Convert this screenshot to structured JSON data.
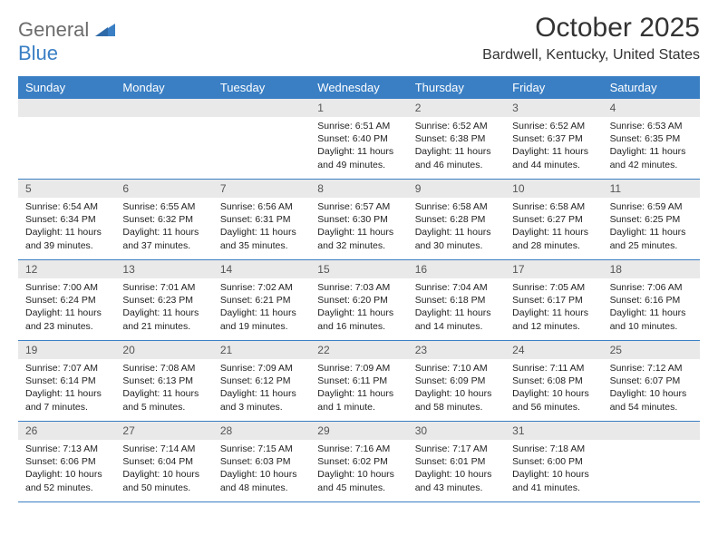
{
  "brand": {
    "word1": "General",
    "word2": "Blue",
    "logo_color": "#3a7fc4",
    "text1_color": "#6c6c6c"
  },
  "title": {
    "month_year": "October 2025",
    "location": "Bardwell, Kentucky, United States"
  },
  "colors": {
    "header_bg": "#3a7fc4",
    "header_text": "#ffffff",
    "daynum_bg": "#e9e9e9",
    "border": "#3a7fc4",
    "body_text": "#222222"
  },
  "day_names": [
    "Sunday",
    "Monday",
    "Tuesday",
    "Wednesday",
    "Thursday",
    "Friday",
    "Saturday"
  ],
  "weeks": [
    [
      {
        "day": "",
        "sunrise": "",
        "sunset": "",
        "daylight": ""
      },
      {
        "day": "",
        "sunrise": "",
        "sunset": "",
        "daylight": ""
      },
      {
        "day": "",
        "sunrise": "",
        "sunset": "",
        "daylight": ""
      },
      {
        "day": "1",
        "sunrise": "Sunrise: 6:51 AM",
        "sunset": "Sunset: 6:40 PM",
        "daylight": "Daylight: 11 hours and 49 minutes."
      },
      {
        "day": "2",
        "sunrise": "Sunrise: 6:52 AM",
        "sunset": "Sunset: 6:38 PM",
        "daylight": "Daylight: 11 hours and 46 minutes."
      },
      {
        "day": "3",
        "sunrise": "Sunrise: 6:52 AM",
        "sunset": "Sunset: 6:37 PM",
        "daylight": "Daylight: 11 hours and 44 minutes."
      },
      {
        "day": "4",
        "sunrise": "Sunrise: 6:53 AM",
        "sunset": "Sunset: 6:35 PM",
        "daylight": "Daylight: 11 hours and 42 minutes."
      }
    ],
    [
      {
        "day": "5",
        "sunrise": "Sunrise: 6:54 AM",
        "sunset": "Sunset: 6:34 PM",
        "daylight": "Daylight: 11 hours and 39 minutes."
      },
      {
        "day": "6",
        "sunrise": "Sunrise: 6:55 AM",
        "sunset": "Sunset: 6:32 PM",
        "daylight": "Daylight: 11 hours and 37 minutes."
      },
      {
        "day": "7",
        "sunrise": "Sunrise: 6:56 AM",
        "sunset": "Sunset: 6:31 PM",
        "daylight": "Daylight: 11 hours and 35 minutes."
      },
      {
        "day": "8",
        "sunrise": "Sunrise: 6:57 AM",
        "sunset": "Sunset: 6:30 PM",
        "daylight": "Daylight: 11 hours and 32 minutes."
      },
      {
        "day": "9",
        "sunrise": "Sunrise: 6:58 AM",
        "sunset": "Sunset: 6:28 PM",
        "daylight": "Daylight: 11 hours and 30 minutes."
      },
      {
        "day": "10",
        "sunrise": "Sunrise: 6:58 AM",
        "sunset": "Sunset: 6:27 PM",
        "daylight": "Daylight: 11 hours and 28 minutes."
      },
      {
        "day": "11",
        "sunrise": "Sunrise: 6:59 AM",
        "sunset": "Sunset: 6:25 PM",
        "daylight": "Daylight: 11 hours and 25 minutes."
      }
    ],
    [
      {
        "day": "12",
        "sunrise": "Sunrise: 7:00 AM",
        "sunset": "Sunset: 6:24 PM",
        "daylight": "Daylight: 11 hours and 23 minutes."
      },
      {
        "day": "13",
        "sunrise": "Sunrise: 7:01 AM",
        "sunset": "Sunset: 6:23 PM",
        "daylight": "Daylight: 11 hours and 21 minutes."
      },
      {
        "day": "14",
        "sunrise": "Sunrise: 7:02 AM",
        "sunset": "Sunset: 6:21 PM",
        "daylight": "Daylight: 11 hours and 19 minutes."
      },
      {
        "day": "15",
        "sunrise": "Sunrise: 7:03 AM",
        "sunset": "Sunset: 6:20 PM",
        "daylight": "Daylight: 11 hours and 16 minutes."
      },
      {
        "day": "16",
        "sunrise": "Sunrise: 7:04 AM",
        "sunset": "Sunset: 6:18 PM",
        "daylight": "Daylight: 11 hours and 14 minutes."
      },
      {
        "day": "17",
        "sunrise": "Sunrise: 7:05 AM",
        "sunset": "Sunset: 6:17 PM",
        "daylight": "Daylight: 11 hours and 12 minutes."
      },
      {
        "day": "18",
        "sunrise": "Sunrise: 7:06 AM",
        "sunset": "Sunset: 6:16 PM",
        "daylight": "Daylight: 11 hours and 10 minutes."
      }
    ],
    [
      {
        "day": "19",
        "sunrise": "Sunrise: 7:07 AM",
        "sunset": "Sunset: 6:14 PM",
        "daylight": "Daylight: 11 hours and 7 minutes."
      },
      {
        "day": "20",
        "sunrise": "Sunrise: 7:08 AM",
        "sunset": "Sunset: 6:13 PM",
        "daylight": "Daylight: 11 hours and 5 minutes."
      },
      {
        "day": "21",
        "sunrise": "Sunrise: 7:09 AM",
        "sunset": "Sunset: 6:12 PM",
        "daylight": "Daylight: 11 hours and 3 minutes."
      },
      {
        "day": "22",
        "sunrise": "Sunrise: 7:09 AM",
        "sunset": "Sunset: 6:11 PM",
        "daylight": "Daylight: 11 hours and 1 minute."
      },
      {
        "day": "23",
        "sunrise": "Sunrise: 7:10 AM",
        "sunset": "Sunset: 6:09 PM",
        "daylight": "Daylight: 10 hours and 58 minutes."
      },
      {
        "day": "24",
        "sunrise": "Sunrise: 7:11 AM",
        "sunset": "Sunset: 6:08 PM",
        "daylight": "Daylight: 10 hours and 56 minutes."
      },
      {
        "day": "25",
        "sunrise": "Sunrise: 7:12 AM",
        "sunset": "Sunset: 6:07 PM",
        "daylight": "Daylight: 10 hours and 54 minutes."
      }
    ],
    [
      {
        "day": "26",
        "sunrise": "Sunrise: 7:13 AM",
        "sunset": "Sunset: 6:06 PM",
        "daylight": "Daylight: 10 hours and 52 minutes."
      },
      {
        "day": "27",
        "sunrise": "Sunrise: 7:14 AM",
        "sunset": "Sunset: 6:04 PM",
        "daylight": "Daylight: 10 hours and 50 minutes."
      },
      {
        "day": "28",
        "sunrise": "Sunrise: 7:15 AM",
        "sunset": "Sunset: 6:03 PM",
        "daylight": "Daylight: 10 hours and 48 minutes."
      },
      {
        "day": "29",
        "sunrise": "Sunrise: 7:16 AM",
        "sunset": "Sunset: 6:02 PM",
        "daylight": "Daylight: 10 hours and 45 minutes."
      },
      {
        "day": "30",
        "sunrise": "Sunrise: 7:17 AM",
        "sunset": "Sunset: 6:01 PM",
        "daylight": "Daylight: 10 hours and 43 minutes."
      },
      {
        "day": "31",
        "sunrise": "Sunrise: 7:18 AM",
        "sunset": "Sunset: 6:00 PM",
        "daylight": "Daylight: 10 hours and 41 minutes."
      },
      {
        "day": "",
        "sunrise": "",
        "sunset": "",
        "daylight": ""
      }
    ]
  ]
}
